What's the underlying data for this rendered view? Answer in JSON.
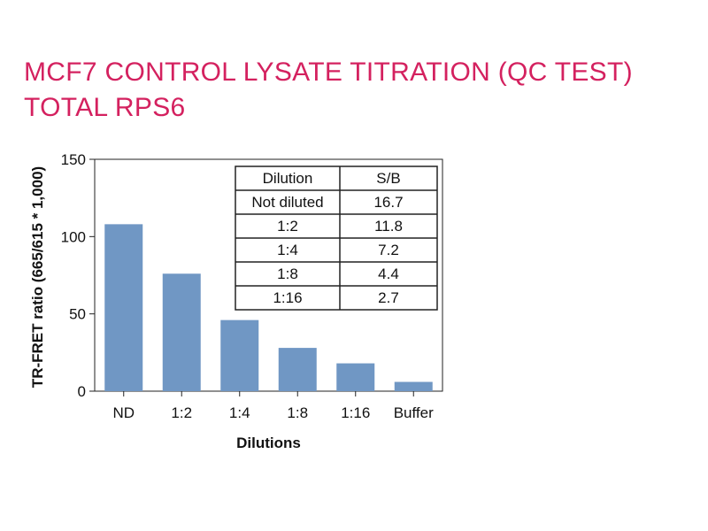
{
  "title_lines": [
    "MCF7 CONTROL LYSATE TITRATION (QC TEST)",
    "TOTAL RPS6"
  ],
  "colors": {
    "title": "#d4215f",
    "bar": "#7097c4",
    "axis": "#222222"
  },
  "chart_data": {
    "type": "bar",
    "categories": [
      "ND",
      "1:2",
      "1:4",
      "1:8",
      "1:16",
      "Buffer"
    ],
    "values": [
      108,
      76,
      46,
      28,
      18,
      6
    ],
    "xlabel": "Dilutions",
    "ylabel": "TR-FRET ratio (665/615 * 1,000)",
    "ylim": [
      0,
      150
    ],
    "yticks": [
      0,
      50,
      100,
      150
    ],
    "grid": false,
    "inset_table": {
      "columns": [
        "Dilution",
        "S/B"
      ],
      "rows": [
        [
          "Not diluted",
          "16.7"
        ],
        [
          "1:2",
          "11.8"
        ],
        [
          "1:4",
          "7.2"
        ],
        [
          "1:8",
          "4.4"
        ],
        [
          "1:16",
          "2.7"
        ]
      ]
    }
  }
}
